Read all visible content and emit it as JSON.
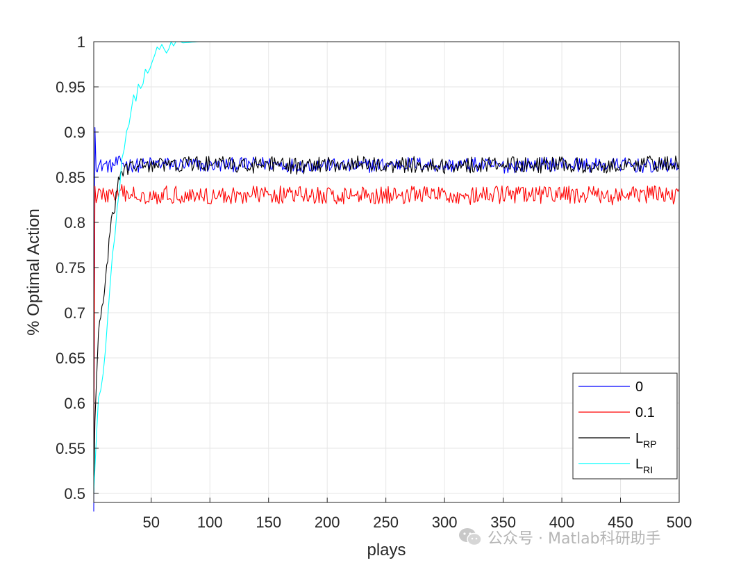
{
  "chart_data": {
    "type": "line",
    "title": "",
    "xlabel": "plays",
    "ylabel": "% Optimal Action",
    "xlim": [
      1,
      500
    ],
    "ylim": [
      0.49,
      1.0
    ],
    "xticks": [
      50,
      100,
      150,
      200,
      250,
      300,
      350,
      400,
      450,
      500
    ],
    "yticks": [
      0.5,
      0.55,
      0.6,
      0.65,
      0.7,
      0.75,
      0.8,
      0.85,
      0.9,
      0.95,
      1
    ],
    "ytick_labels": [
      "0.5",
      "0.55",
      "0.6",
      "0.65",
      "0.7",
      "0.75",
      "0.8",
      "0.85",
      "0.9",
      "0.95",
      "1"
    ],
    "grid": true,
    "legend_position": "bottom-right",
    "series": [
      {
        "name": "0",
        "color": "#0000ff",
        "x": [
          1,
          2,
          3,
          5,
          10,
          15,
          20,
          25,
          30,
          40,
          50,
          75,
          100,
          125,
          150,
          175,
          200,
          225,
          250,
          275,
          300,
          325,
          350,
          375,
          400,
          425,
          450,
          475,
          500
        ],
        "values": [
          0.48,
          0.905,
          0.865,
          0.862,
          0.864,
          0.862,
          0.865,
          0.866,
          0.864,
          0.863,
          0.865,
          0.864,
          0.863,
          0.864,
          0.865,
          0.863,
          0.864,
          0.862,
          0.864,
          0.865,
          0.863,
          0.864,
          0.862,
          0.864,
          0.865,
          0.863,
          0.864,
          0.862,
          0.864
        ],
        "noise": 0.008,
        "noise_step": 1
      },
      {
        "name": "0.1",
        "color": "#ff0000",
        "x": [
          1,
          2,
          3,
          5,
          10,
          15,
          20,
          25,
          30,
          40,
          50,
          75,
          100,
          125,
          150,
          175,
          200,
          225,
          250,
          275,
          300,
          325,
          350,
          375,
          400,
          425,
          450,
          475,
          500
        ],
        "values": [
          0.52,
          0.84,
          0.83,
          0.832,
          0.83,
          0.831,
          0.83,
          0.832,
          0.83,
          0.831,
          0.83,
          0.831,
          0.829,
          0.83,
          0.831,
          0.83,
          0.829,
          0.831,
          0.83,
          0.831,
          0.83,
          0.829,
          0.831,
          0.83,
          0.831,
          0.83,
          0.829,
          0.831,
          0.83
        ],
        "noise": 0.01,
        "noise_step": 1
      },
      {
        "name": "L_RP",
        "label_main": "L",
        "label_sub": "RP",
        "color": "#000000",
        "x": [
          1,
          2,
          3,
          5,
          8,
          10,
          12,
          15,
          18,
          20,
          22,
          25,
          28,
          30,
          35,
          40,
          50,
          60,
          75,
          100,
          125,
          150,
          175,
          200,
          225,
          250,
          275,
          300,
          325,
          350,
          375,
          400,
          425,
          450,
          475,
          500
        ],
        "values": [
          0.5,
          0.58,
          0.62,
          0.67,
          0.71,
          0.72,
          0.75,
          0.79,
          0.81,
          0.83,
          0.845,
          0.855,
          0.858,
          0.86,
          0.862,
          0.863,
          0.864,
          0.863,
          0.864,
          0.865,
          0.863,
          0.864,
          0.862,
          0.864,
          0.865,
          0.863,
          0.864,
          0.862,
          0.864,
          0.865,
          0.863,
          0.864,
          0.862,
          0.864,
          0.865,
          0.866
        ],
        "noise": 0.009,
        "noise_step": 1
      },
      {
        "name": "L_RI",
        "label_main": "L",
        "label_sub": "RI",
        "color": "#00ffff",
        "x": [
          1,
          3,
          5,
          8,
          10,
          12,
          15,
          18,
          20,
          22,
          25,
          28,
          30,
          35,
          40,
          45,
          50,
          55,
          60,
          70,
          80,
          90,
          100,
          125,
          150,
          200,
          250,
          300,
          350,
          400,
          450,
          500
        ],
        "values": [
          0.5,
          0.56,
          0.6,
          0.63,
          0.65,
          0.68,
          0.73,
          0.78,
          0.8,
          0.83,
          0.865,
          0.895,
          0.91,
          0.935,
          0.95,
          0.965,
          0.98,
          0.988,
          0.994,
          0.998,
          0.999,
          1.0,
          1.0,
          1.0,
          1.0,
          1.0,
          1.0,
          1.0,
          1.0,
          1.0,
          1.0,
          1.0
        ],
        "noise": 0.008,
        "noise_step": 2,
        "noise_until": 75
      }
    ]
  },
  "watermark": {
    "text": "公众号 · Matlab科研助手",
    "icon": "wechat-icon"
  }
}
